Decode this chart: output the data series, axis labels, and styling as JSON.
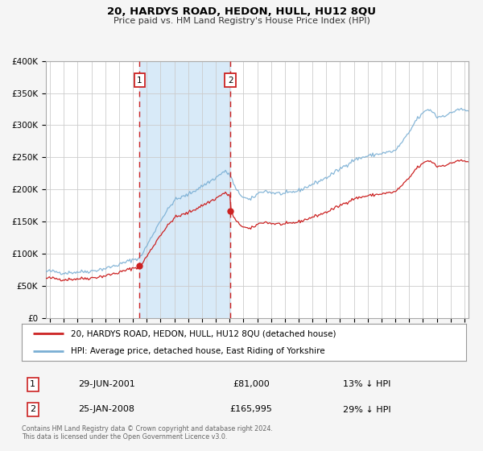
{
  "title": "20, HARDYS ROAD, HEDON, HULL, HU12 8QU",
  "subtitle": "Price paid vs. HM Land Registry's House Price Index (HPI)",
  "legend_entry1": "20, HARDYS ROAD, HEDON, HULL, HU12 8QU (detached house)",
  "legend_entry2": "HPI: Average price, detached house, East Riding of Yorkshire",
  "annotation1_label": "1",
  "annotation1_date": "29-JUN-2001",
  "annotation1_price": "£81,000",
  "annotation1_hpi": "13% ↓ HPI",
  "annotation2_label": "2",
  "annotation2_date": "25-JAN-2008",
  "annotation2_price": "£165,995",
  "annotation2_hpi": "29% ↓ HPI",
  "footnote": "Contains HM Land Registry data © Crown copyright and database right 2024.\nThis data is licensed under the Open Government Licence v3.0.",
  "hpi_color": "#7aafd4",
  "price_color": "#cc2222",
  "sale1_x": 2001.49,
  "sale1_y": 81000,
  "sale2_x": 2008.07,
  "sale2_y": 165995,
  "vline1_x": 2001.49,
  "vline2_x": 2008.07,
  "ylim": [
    0,
    400000
  ],
  "xlim": [
    1994.7,
    2025.3
  ],
  "background_color": "#f5f5f5",
  "plot_bg_color": "#ffffff",
  "grid_color": "#cccccc",
  "shaded_region_color": "#d8eaf8"
}
